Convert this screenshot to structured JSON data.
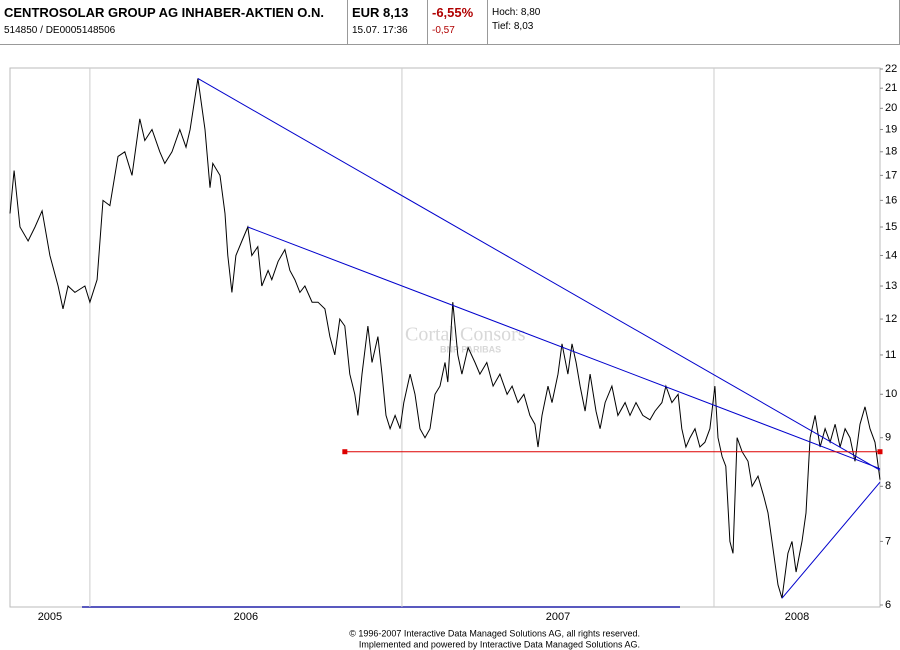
{
  "header": {
    "name": "CENTROSOLAR GROUP AG INHABER-AKTIEN O.N.",
    "ids": "514850  /  DE0005148506",
    "price": "EUR 8,13",
    "time": "15.07. 17:36",
    "change_pct": "-6,55%",
    "change_abs": "-0,57",
    "high": "Hoch: 8,80",
    "low": "Tief: 8,03"
  },
  "chart_data": {
    "type": "line",
    "log_y": true,
    "grid": "x",
    "x": [
      2005.744,
      2005.757,
      2005.776,
      2005.802,
      2005.824,
      2005.847,
      2005.872,
      2005.898,
      2005.914,
      2005.93,
      2005.952,
      2005.984,
      2006.0,
      2006.023,
      2006.042,
      2006.064,
      2006.09,
      2006.112,
      2006.135,
      2006.16,
      2006.176,
      2006.199,
      2006.224,
      2006.24,
      2006.263,
      2006.288,
      2006.308,
      2006.321,
      2006.346,
      2006.369,
      2006.385,
      2006.394,
      2006.417,
      2006.433,
      2006.442,
      2006.455,
      2006.468,
      2006.487,
      2006.506,
      2006.519,
      2006.538,
      2006.551,
      2006.571,
      2006.583,
      2006.603,
      2006.625,
      2006.641,
      2006.657,
      2006.673,
      2006.689,
      2006.712,
      2006.731,
      2006.753,
      2006.769,
      2006.785,
      2006.801,
      2006.817,
      2006.833,
      2006.849,
      2006.859,
      2006.872,
      2006.891,
      2006.904,
      2006.923,
      2006.936,
      2006.949,
      2006.962,
      2006.978,
      2006.994,
      2007.006,
      2007.026,
      2007.042,
      2007.058,
      2007.074,
      2007.09,
      2007.106,
      2007.122,
      2007.138,
      2007.147,
      2007.163,
      2007.179,
      2007.192,
      2007.212,
      2007.234,
      2007.25,
      2007.272,
      2007.292,
      2007.314,
      2007.337,
      2007.353,
      2007.372,
      2007.391,
      2007.41,
      2007.426,
      2007.436,
      2007.449,
      2007.468,
      2007.481,
      2007.5,
      2007.513,
      2007.532,
      2007.545,
      2007.558,
      2007.571,
      2007.587,
      2007.603,
      2007.622,
      2007.635,
      2007.651,
      2007.673,
      2007.692,
      2007.715,
      2007.731,
      2007.75,
      2007.772,
      2007.795,
      2007.811,
      2007.833,
      2007.846,
      2007.865,
      2007.885,
      2007.897,
      2007.91,
      2007.923,
      2007.939,
      2007.955,
      2007.971,
      2007.987,
      2008.003,
      2008.013,
      2008.026,
      2008.038,
      2008.051,
      2008.061,
      2008.074,
      2008.09,
      2008.109,
      2008.122,
      2008.141,
      2008.16,
      2008.173,
      2008.186,
      2008.205,
      2008.218,
      2008.237,
      2008.25,
      2008.263,
      2008.282,
      2008.295,
      2008.308,
      2008.324,
      2008.34,
      2008.356,
      2008.372,
      2008.388,
      2008.404,
      2008.42,
      2008.436,
      2008.452,
      2008.468,
      2008.484,
      2008.5,
      2008.516,
      2008.532
    ],
    "series": [
      {
        "color": "#000000",
        "values": [
          15.5,
          17.2,
          15,
          14.5,
          15,
          15.6,
          14,
          13,
          12.3,
          13,
          12.8,
          13,
          12.5,
          13.2,
          16,
          15.8,
          17.8,
          18,
          17,
          19.5,
          18.5,
          19,
          18,
          17.5,
          18,
          19,
          18.2,
          19,
          21.5,
          19,
          16.5,
          17.5,
          17,
          15.5,
          14,
          12.8,
          14,
          14.5,
          15,
          14,
          14.3,
          13,
          13.5,
          13.2,
          13.8,
          14.2,
          13.5,
          13.2,
          12.8,
          13,
          12.5,
          12.5,
          12.3,
          11.5,
          11,
          12,
          11.8,
          10.5,
          10,
          9.5,
          10.5,
          11.8,
          10.8,
          11.5,
          10.5,
          9.5,
          9.2,
          9.5,
          9.2,
          9.8,
          10.5,
          10,
          9.2,
          9,
          9.2,
          10,
          10.2,
          10.8,
          10.3,
          12.5,
          11,
          10.5,
          11.2,
          10.8,
          10.5,
          10.8,
          10.2,
          10.5,
          10,
          10.2,
          9.8,
          10,
          9.5,
          9.3,
          8.8,
          9.5,
          10.2,
          9.8,
          10.5,
          11.3,
          10.5,
          11.3,
          10.8,
          10.2,
          9.6,
          10.5,
          9.6,
          9.2,
          9.8,
          10.2,
          9.5,
          9.8,
          9.5,
          9.8,
          9.5,
          9.4,
          9.6,
          9.8,
          10.2,
          9.8,
          10,
          9.2,
          8.8,
          9,
          9.2,
          8.8,
          8.9,
          9.2,
          10.2,
          9,
          8.6,
          8.4,
          7,
          6.8,
          9,
          8.7,
          8.5,
          8,
          8.2,
          7.8,
          7.5,
          7,
          6.3,
          6.1,
          6.8,
          7,
          6.5,
          7,
          7.5,
          9,
          9.5,
          8.8,
          9.2,
          8.9,
          9.3,
          8.8,
          9.2,
          9,
          8.5,
          9.3,
          9.7,
          9.2,
          8.9,
          8.13
        ]
      }
    ],
    "trendlines": [
      {
        "color": "#0000cc",
        "x": [
          2006.346,
          2008.532
        ],
        "values": [
          21.5,
          8.32
        ]
      },
      {
        "color": "#0000cc",
        "x": [
          2006.506,
          2008.532
        ],
        "values": [
          15,
          8.35
        ]
      },
      {
        "color": "#0000cc",
        "x": [
          2008.218,
          2008.532
        ],
        "values": [
          6.1,
          8.08
        ]
      },
      {
        "color": "#dd0000",
        "x": [
          2006.817,
          2008.532
        ],
        "values": [
          8.7,
          8.7
        ]
      }
    ],
    "xlim": [
      2005.744,
      2008.532
    ],
    "xticks": [
      {
        "value": 2005,
        "label": "2005"
      },
      {
        "value": 2006,
        "label": "2006"
      },
      {
        "value": 2007,
        "label": "2007"
      },
      {
        "value": 2008,
        "label": "2008"
      }
    ],
    "ylim": [
      6,
      22
    ],
    "yticks": [
      6,
      7,
      8,
      9,
      10,
      11,
      12,
      13,
      14,
      15,
      16,
      17,
      18,
      19,
      20,
      21,
      22
    ],
    "watermark": "Cortal Consors",
    "watermark_sub": "BNP PARIBAS"
  },
  "footer": [
    "© 1996-2007 Interactive Data Managed Solutions AG, all rights reserved.",
    "Implemented and powered by Interactive Data Managed Solutions AG."
  ]
}
